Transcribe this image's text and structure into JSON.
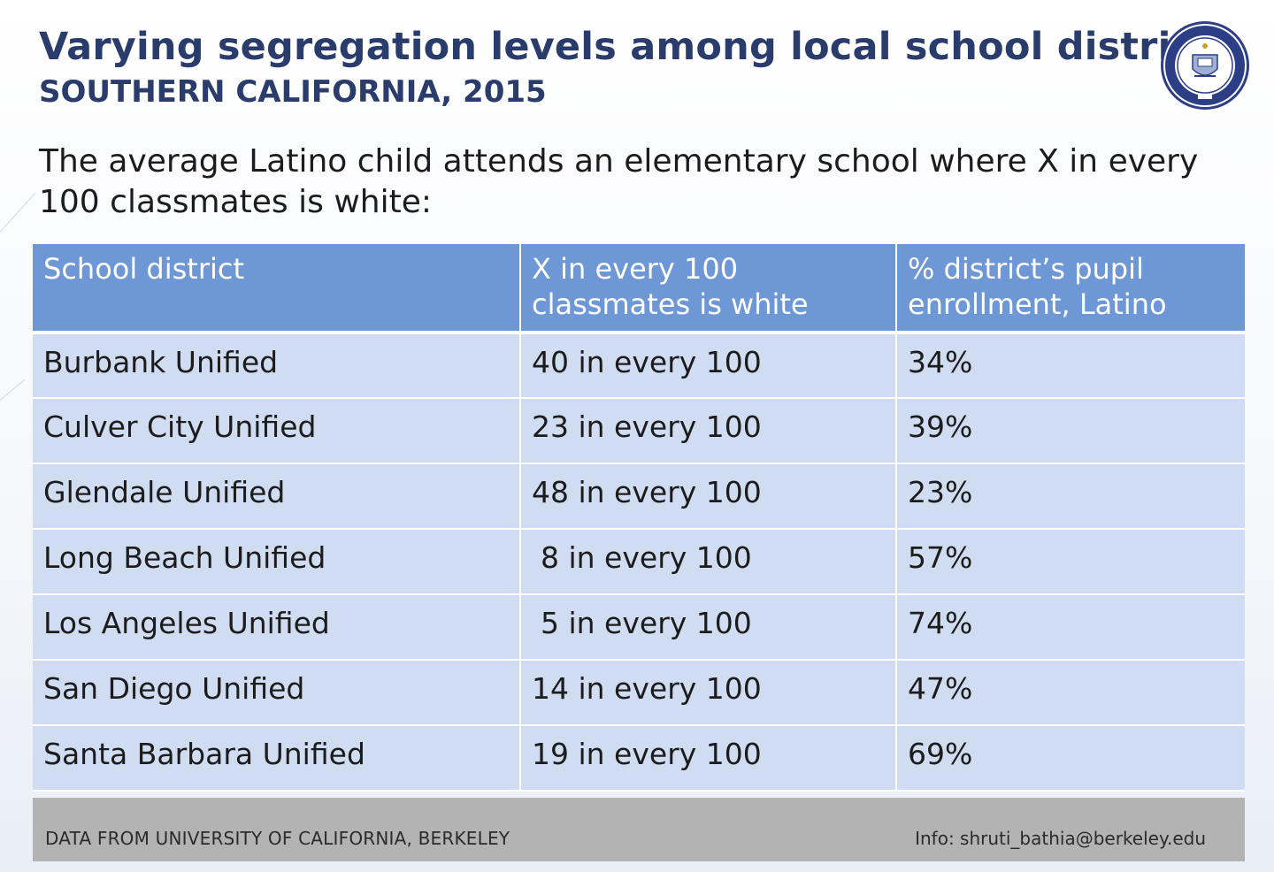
{
  "header": {
    "title": "Varying segregation levels among local school districts",
    "subtitle": "SOUTHERN CALIFORNIA, 2015",
    "logo": "university-seal-icon"
  },
  "intro": "The average Latino child attends an elementary school where X in every 100 classmates is white:",
  "table": {
    "headers": [
      "School district",
      "X in every 100 classmates is white",
      "% district’s pupil enrollment, Latino"
    ],
    "rows": [
      {
        "district": "Burbank Unified",
        "white": "40 in every 100",
        "latino": "34%"
      },
      {
        "district": "Culver City Unified",
        "white": "23 in every 100",
        "latino": "39%"
      },
      {
        "district": "Glendale Unified",
        "white": "48 in every 100",
        "latino": "23%"
      },
      {
        "district": "Long Beach Unified",
        "white": " 8 in every 100",
        "latino": "57%"
      },
      {
        "district": "Los Angeles Unified",
        "white": " 5 in every 100",
        "latino": "74%"
      },
      {
        "district": "San Diego Unified",
        "white": "14 in every 100",
        "latino": "47%"
      },
      {
        "district": "Santa Barbara Unified",
        "white": "19 in every 100",
        "latino": "69%"
      }
    ]
  },
  "footer": {
    "source": "DATA FROM UNIVERSITY OF CALIFORNIA, BERKELEY",
    "info": "Info: shruti_bathia@berkeley.edu"
  },
  "colors": {
    "title": "#2a3c6b",
    "header_fill": "#6e97d6",
    "row_fill": "#cfdcf1",
    "footer_fill": "#b3b3b3"
  }
}
